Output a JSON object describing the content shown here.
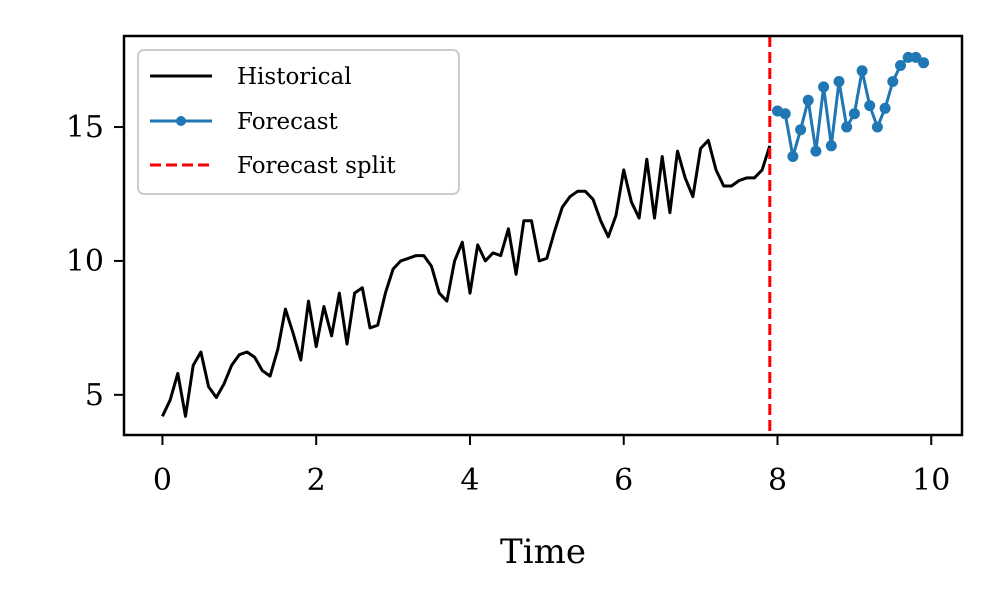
{
  "chart_data": {
    "type": "line",
    "title": "",
    "xlabel": "Time",
    "ylabel": "",
    "xlim": [
      -0.5,
      10.4
    ],
    "ylim": [
      3.5,
      18.4
    ],
    "xticks": [
      0,
      2,
      4,
      6,
      8,
      10
    ],
    "xtick_labels": [
      "0",
      "2",
      "4",
      "6",
      "8",
      "10"
    ],
    "yticks": [
      5,
      10,
      15
    ],
    "ytick_labels": [
      "5",
      "10",
      "15"
    ],
    "grid": false,
    "legend_position": "top-left",
    "series": [
      {
        "name": "Historical",
        "color": "#000000",
        "marker": "none",
        "x": [
          0.0,
          0.1,
          0.2,
          0.3,
          0.4,
          0.5,
          0.6,
          0.7,
          0.8,
          0.9,
          1.0,
          1.1,
          1.2,
          1.3,
          1.4,
          1.5,
          1.6,
          1.7,
          1.8,
          1.9,
          2.0,
          2.1,
          2.2,
          2.3,
          2.4,
          2.5,
          2.6,
          2.7,
          2.8,
          2.9,
          3.0,
          3.1,
          3.2,
          3.3,
          3.4,
          3.5,
          3.6,
          3.7,
          3.8,
          3.9,
          4.0,
          4.1,
          4.2,
          4.3,
          4.4,
          4.5,
          4.6,
          4.7,
          4.8,
          4.9,
          5.0,
          5.1,
          5.2,
          5.3,
          5.4,
          5.5,
          5.6,
          5.7,
          5.8,
          5.9,
          6.0,
          6.1,
          6.2,
          6.3,
          6.4,
          6.5,
          6.6,
          6.7,
          6.8,
          6.9,
          7.0,
          7.1,
          7.2,
          7.3,
          7.4,
          7.5,
          7.6,
          7.7,
          7.8,
          7.9
        ],
        "values": [
          4.2,
          4.8,
          5.8,
          4.2,
          6.1,
          6.6,
          5.3,
          4.9,
          5.4,
          6.1,
          6.5,
          6.6,
          6.4,
          5.9,
          5.7,
          6.7,
          8.2,
          7.3,
          6.3,
          8.5,
          6.8,
          8.3,
          7.2,
          8.8,
          6.9,
          8.8,
          9.0,
          7.5,
          7.6,
          8.8,
          9.7,
          10.0,
          10.1,
          10.2,
          10.2,
          9.8,
          8.8,
          8.5,
          10.0,
          10.7,
          8.8,
          10.6,
          10.0,
          10.3,
          10.2,
          11.2,
          9.5,
          11.5,
          11.5,
          10.0,
          10.1,
          11.1,
          12.0,
          12.4,
          12.6,
          12.6,
          12.3,
          11.5,
          10.9,
          11.7,
          13.4,
          12.2,
          11.6,
          13.8,
          11.6,
          13.9,
          11.8,
          14.1,
          13.1,
          12.4,
          14.2,
          14.5,
          13.4,
          12.8,
          12.8,
          13.0,
          13.1,
          13.1,
          13.4,
          14.3
        ]
      },
      {
        "name": "Forecast",
        "color": "#1f77b4",
        "marker": "circle",
        "x": [
          8.0,
          8.1,
          8.2,
          8.3,
          8.4,
          8.5,
          8.6,
          8.7,
          8.8,
          8.9,
          9.0,
          9.1,
          9.2,
          9.3,
          9.4,
          9.5,
          9.6,
          9.7,
          9.8,
          9.9
        ],
        "values": [
          15.6,
          15.5,
          13.9,
          14.9,
          16.0,
          14.1,
          16.5,
          14.3,
          16.7,
          15.0,
          15.5,
          17.1,
          15.8,
          15.0,
          15.7,
          16.7,
          17.3,
          17.6,
          17.6,
          17.4
        ]
      }
    ],
    "vlines": [
      {
        "name": "Forecast split",
        "x": 7.9,
        "color": "#ff0000",
        "style": "dashed"
      }
    ],
    "legend": [
      {
        "label": "Historical",
        "kind": "line"
      },
      {
        "label": "Forecast",
        "kind": "line-marker"
      },
      {
        "label": "Forecast split",
        "kind": "dashed"
      }
    ]
  }
}
